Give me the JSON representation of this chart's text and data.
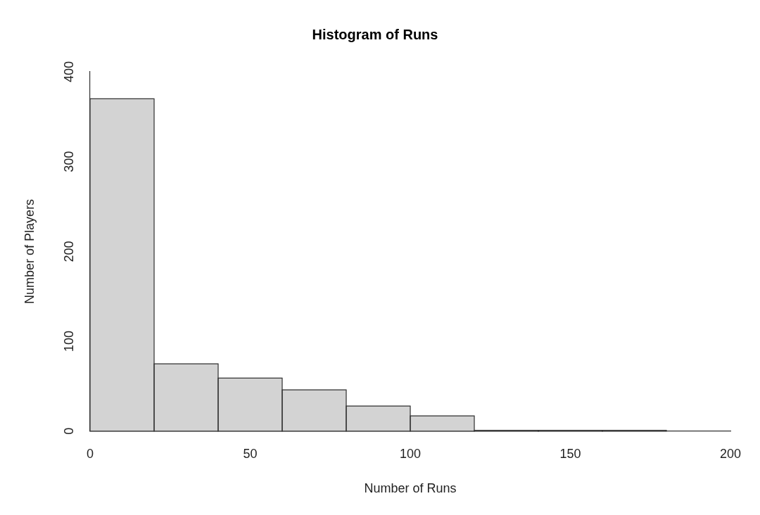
{
  "chart_data": {
    "type": "histogram",
    "title": "Histogram of Runs",
    "xlabel": "Number of Runs",
    "ylabel": "Number of Players",
    "bins": [
      0,
      20,
      40,
      60,
      80,
      100,
      120,
      140,
      160,
      180
    ],
    "values": [
      370,
      75,
      59,
      46,
      28,
      17,
      1,
      1,
      1
    ],
    "color": "#d3d3d3",
    "xlim": [
      0,
      200
    ],
    "xticks": [
      0,
      50,
      100,
      150,
      200
    ],
    "ylim": [
      0,
      400
    ],
    "yticks": [
      0,
      100,
      200,
      300,
      400
    ],
    "grid": false,
    "legend": false
  }
}
